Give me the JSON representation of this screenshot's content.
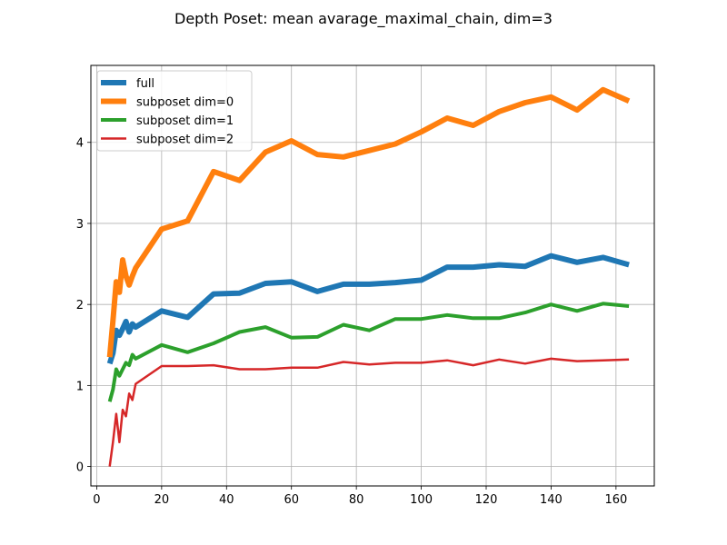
{
  "chart_data": {
    "type": "line",
    "title": "Depth Poset: mean avarage_maximal_chain, dim=3",
    "xlabel": "",
    "ylabel": "",
    "xlim": [
      -1.8,
      171.8
    ],
    "ylim": [
      -0.24,
      4.95
    ],
    "x_ticks": [
      0,
      20,
      40,
      60,
      80,
      100,
      120,
      140,
      160
    ],
    "y_ticks": [
      0,
      1,
      2,
      3,
      4
    ],
    "grid": true,
    "legend_position": "top-left",
    "series": [
      {
        "name": "full",
        "color": "#1f77b4",
        "line_width": 6,
        "x": [
          4,
          5,
          6,
          7,
          8,
          9,
          10,
          11,
          12,
          20,
          28,
          36,
          44,
          52,
          60,
          68,
          76,
          84,
          92,
          100,
          108,
          116,
          124,
          132,
          140,
          148,
          156,
          164
        ],
        "y": [
          1.27,
          1.4,
          1.68,
          1.62,
          1.7,
          1.79,
          1.66,
          1.76,
          1.72,
          1.92,
          1.84,
          2.13,
          2.14,
          2.26,
          2.28,
          2.16,
          2.25,
          2.25,
          2.27,
          2.3,
          2.46,
          2.46,
          2.49,
          2.47,
          2.6,
          2.52,
          2.58,
          2.49
        ]
      },
      {
        "name": "subposet dim=0",
        "color": "#ff7f0e",
        "line_width": 6,
        "x": [
          4,
          5,
          6,
          7,
          8,
          9,
          10,
          11,
          12,
          20,
          28,
          36,
          44,
          52,
          60,
          68,
          76,
          84,
          92,
          100,
          108,
          116,
          124,
          132,
          140,
          148,
          156,
          164
        ],
        "y": [
          1.35,
          1.8,
          2.28,
          2.15,
          2.55,
          2.35,
          2.24,
          2.35,
          2.45,
          2.93,
          3.03,
          3.64,
          3.53,
          3.88,
          4.02,
          3.85,
          3.82,
          3.9,
          3.98,
          4.13,
          4.3,
          4.21,
          4.38,
          4.49,
          4.56,
          4.4,
          4.65,
          4.51
        ]
      },
      {
        "name": "subposet dim=1",
        "color": "#2ca02c",
        "line_width": 4,
        "x": [
          4,
          5,
          6,
          7,
          8,
          9,
          10,
          11,
          12,
          20,
          28,
          36,
          44,
          52,
          60,
          68,
          76,
          84,
          92,
          100,
          108,
          116,
          124,
          132,
          140,
          148,
          156,
          164
        ],
        "y": [
          0.8,
          0.95,
          1.2,
          1.12,
          1.2,
          1.28,
          1.25,
          1.38,
          1.33,
          1.5,
          1.41,
          1.52,
          1.66,
          1.72,
          1.59,
          1.6,
          1.75,
          1.68,
          1.82,
          1.82,
          1.87,
          1.83,
          1.83,
          1.9,
          2.0,
          1.92,
          2.01,
          1.98
        ]
      },
      {
        "name": "subposet dim=2",
        "color": "#d62728",
        "line_width": 2.5,
        "x": [
          4,
          5,
          6,
          7,
          8,
          9,
          10,
          11,
          12,
          20,
          28,
          36,
          44,
          52,
          60,
          68,
          76,
          84,
          92,
          100,
          108,
          116,
          124,
          132,
          140,
          148,
          156,
          164
        ],
        "y": [
          0.0,
          0.3,
          0.65,
          0.3,
          0.7,
          0.62,
          0.9,
          0.82,
          1.02,
          1.24,
          1.24,
          1.25,
          1.2,
          1.2,
          1.22,
          1.22,
          1.29,
          1.26,
          1.28,
          1.28,
          1.31,
          1.25,
          1.32,
          1.27,
          1.33,
          1.3,
          1.31,
          1.32
        ]
      }
    ]
  }
}
